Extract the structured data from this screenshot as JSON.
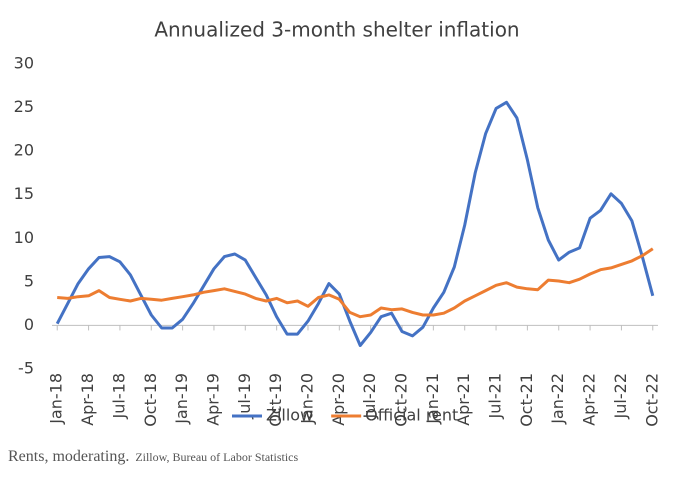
{
  "chart_data": {
    "type": "line",
    "title": "Annualized 3-month shelter  inflation",
    "categories": [
      "Jan-18",
      null,
      null,
      "Apr-18",
      null,
      null,
      "Jul-18",
      null,
      null,
      "Oct-18",
      null,
      null,
      "Jan-19",
      null,
      null,
      "Apr-19",
      null,
      null,
      "Jul-19",
      null,
      null,
      "Oct-19",
      null,
      null,
      "Jan-20",
      null,
      null,
      "Apr-20",
      null,
      null,
      "Jul-20",
      null,
      null,
      "Oct-20",
      null,
      null,
      "Jan-21",
      null,
      null,
      "Apr-21",
      null,
      null,
      "Jul-21",
      null,
      null,
      "Oct-21",
      null,
      null,
      "Jan-22",
      null,
      null,
      "Apr-22",
      null,
      null,
      "Jul-22",
      null,
      null,
      "Oct-22"
    ],
    "series": [
      {
        "name": "Zillow",
        "color": "#4472c4",
        "values": [
          0.2,
          2.5,
          4.8,
          6.5,
          7.8,
          7.9,
          7.3,
          5.8,
          3.5,
          1.2,
          -0.3,
          -0.3,
          0.7,
          2.5,
          4.5,
          6.5,
          7.9,
          8.2,
          7.5,
          5.5,
          3.5,
          1.0,
          -1.0,
          -1.0,
          0.5,
          2.5,
          4.8,
          3.6,
          0.5,
          -2.3,
          -0.8,
          1.0,
          1.4,
          -0.7,
          -1.2,
          -0.2,
          2.0,
          3.8,
          6.7,
          11.5,
          17.5,
          22.0,
          24.9,
          25.6,
          23.8,
          19.0,
          13.5,
          9.8,
          7.5,
          8.4,
          8.9,
          12.3,
          13.2,
          15.1,
          14.0,
          12.0,
          7.9,
          3.4
        ]
      },
      {
        "name": "Official rent",
        "color": "#ed7d31",
        "values": [
          3.2,
          3.1,
          3.3,
          3.4,
          4.0,
          3.2,
          3.0,
          2.8,
          3.1,
          3.0,
          2.9,
          3.1,
          3.3,
          3.5,
          3.8,
          4.0,
          4.2,
          3.9,
          3.6,
          3.1,
          2.8,
          3.1,
          2.6,
          2.8,
          2.2,
          3.2,
          3.5,
          3.0,
          1.5,
          1.0,
          1.2,
          2.0,
          1.8,
          1.9,
          1.5,
          1.2,
          1.2,
          1.4,
          2.0,
          2.8,
          3.4,
          4.0,
          4.6,
          4.9,
          4.4,
          4.2,
          4.1,
          5.2,
          5.1,
          4.9,
          5.3,
          5.9,
          6.4,
          6.6,
          7.0,
          7.4,
          8.0,
          8.8
        ]
      }
    ],
    "ylim": [
      -5,
      30
    ],
    "yticks": [
      -5,
      0,
      5,
      10,
      15,
      20,
      25,
      30
    ],
    "grid": false,
    "legend": "bottom"
  },
  "caption": {
    "text": "Rents, moderating.",
    "source": "Zillow, Bureau of Labor Statistics"
  }
}
